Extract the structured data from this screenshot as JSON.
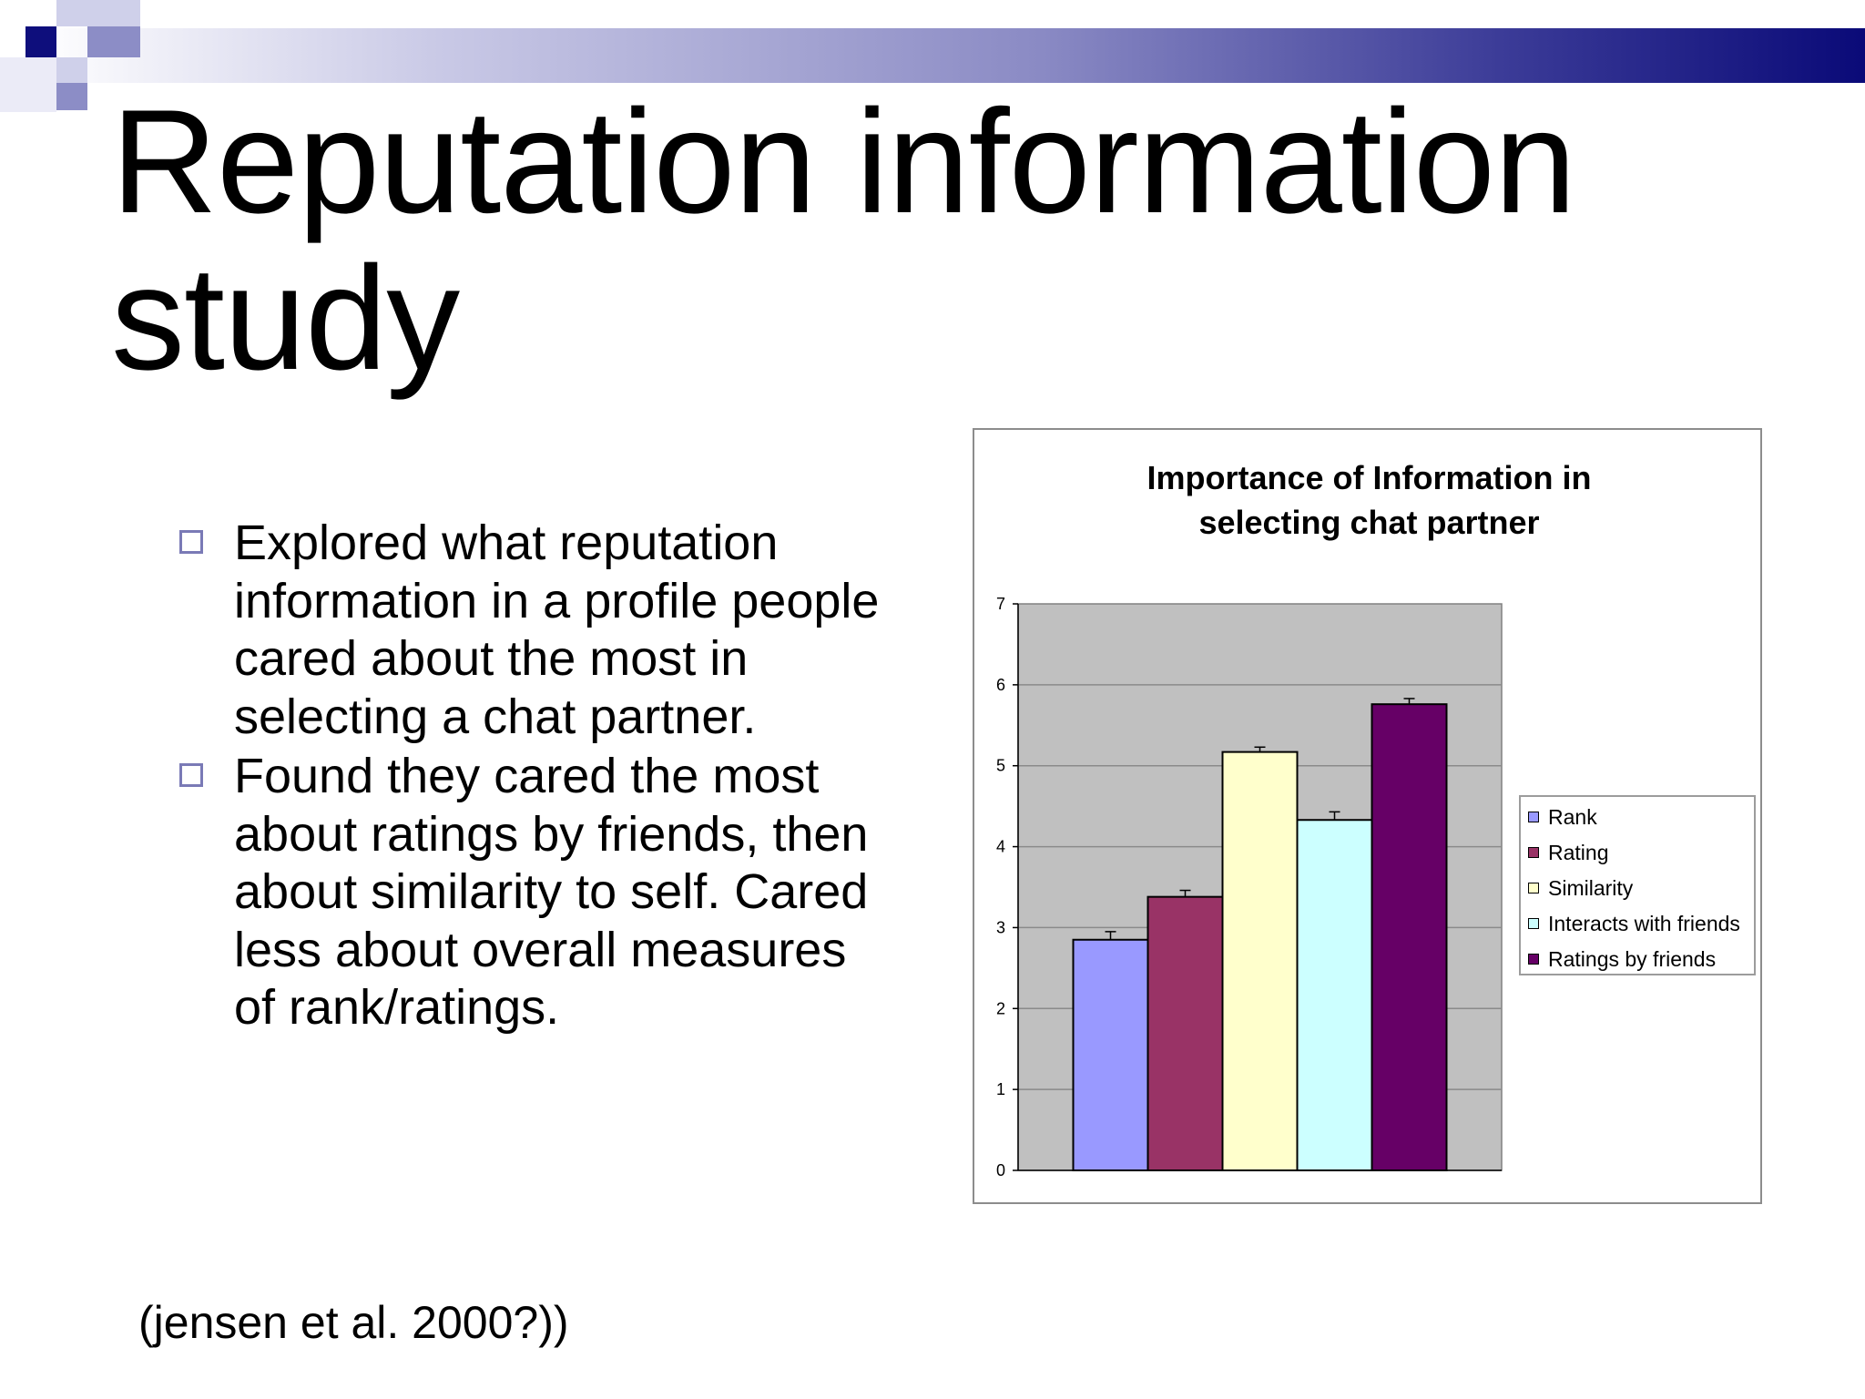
{
  "slide": {
    "title_line1": "Reputation information",
    "title_line2": "study",
    "bullets": [
      "Explored what reputation information in a profile people cared about the most in selecting a chat partner.",
      "Found they cared the most about ratings by friends, then about similarity to self.   Cared less about overall measures of rank/ratings."
    ],
    "citation": "(jensen et al. 2000?))"
  },
  "chart_data": {
    "type": "bar",
    "title": "Importance of Information in selecting chat partner",
    "title_lines": [
      "Importance of Information in",
      "selecting chat partner"
    ],
    "xlabel": "",
    "ylabel": "",
    "ylim": [
      0,
      7
    ],
    "yticks": [
      "0",
      "1",
      "2",
      "3",
      "4",
      "5",
      "6",
      "7"
    ],
    "grid": true,
    "legend_position": "right",
    "series": [
      {
        "name": "Rank",
        "value": 2.85,
        "error": 0.1,
        "color": "#9999ff"
      },
      {
        "name": "Rating",
        "value": 3.38,
        "error": 0.08,
        "color": "#993366"
      },
      {
        "name": "Similarity",
        "value": 5.17,
        "error": 0.06,
        "color": "#ffffcc"
      },
      {
        "name": "Interacts with friends",
        "value": 4.33,
        "error": 0.1,
        "color": "#ccffff"
      },
      {
        "name": "Ratings by friends",
        "value": 5.76,
        "error": 0.07,
        "color": "#660066"
      }
    ],
    "plot_background": "#c0c0c0"
  }
}
